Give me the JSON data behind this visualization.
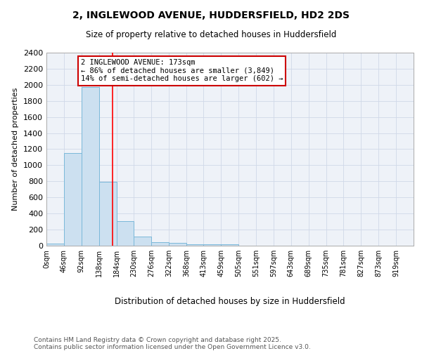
{
  "title1": "2, INGLEWOOD AVENUE, HUDDERSFIELD, HD2 2DS",
  "title2": "Size of property relative to detached houses in Huddersfield",
  "xlabel": "Distribution of detached houses by size in Huddersfield",
  "ylabel": "Number of detached properties",
  "bin_edges": [
    0,
    46,
    92,
    138,
    184,
    230,
    276,
    322,
    368,
    413,
    459,
    505,
    551,
    597,
    643,
    689,
    735,
    781,
    827,
    873,
    919,
    965
  ],
  "bar_heights": [
    30,
    1150,
    1975,
    790,
    305,
    110,
    45,
    35,
    20,
    15,
    15,
    0,
    0,
    0,
    0,
    0,
    0,
    0,
    0,
    0,
    0
  ],
  "bar_color": "#cce0f0",
  "bar_edge_color": "#7ab8d9",
  "red_line_x": 173,
  "ylim": [
    0,
    2400
  ],
  "yticks": [
    0,
    200,
    400,
    600,
    800,
    1000,
    1200,
    1400,
    1600,
    1800,
    2000,
    2200,
    2400
  ],
  "annotation_text": "2 INGLEWOOD AVENUE: 173sqm\n← 86% of detached houses are smaller (3,849)\n14% of semi-detached houses are larger (602) →",
  "annotation_box_color": "#ffffff",
  "annotation_box_edgecolor": "#cc0000",
  "footer_text": "Contains HM Land Registry data © Crown copyright and database right 2025.\nContains public sector information licensed under the Open Government Licence v3.0.",
  "xtick_labels": [
    "0sqm",
    "46sqm",
    "92sqm",
    "138sqm",
    "184sqm",
    "230sqm",
    "276sqm",
    "322sqm",
    "368sqm",
    "413sqm",
    "459sqm",
    "505sqm",
    "551sqm",
    "597sqm",
    "643sqm",
    "689sqm",
    "735sqm",
    "781sqm",
    "827sqm",
    "873sqm",
    "919sqm"
  ],
  "grid_color": "#d0d8e8",
  "background_color": "#eef2f8"
}
